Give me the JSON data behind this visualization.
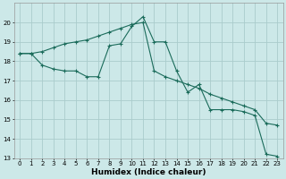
{
  "xlabel": "Humidex (Indice chaleur)",
  "background_color": "#cce8e8",
  "grid_color": "#aacccc",
  "line_color": "#1a6b5a",
  "line1_y": [
    18.4,
    18.4,
    17.8,
    17.6,
    17.5,
    17.5,
    17.2,
    17.2,
    18.8,
    18.9,
    19.8,
    20.3,
    19.0,
    19.0,
    17.5,
    16.4,
    16.8,
    15.5,
    15.5,
    15.5,
    15.4,
    15.2,
    13.2,
    13.1
  ],
  "line2_y": [
    18.4,
    18.4,
    18.5,
    18.7,
    18.9,
    19.0,
    19.1,
    19.3,
    19.5,
    19.7,
    19.9,
    20.0,
    17.5,
    17.2,
    17.0,
    16.8,
    16.6,
    16.3,
    16.1,
    15.9,
    15.7,
    15.5,
    14.8,
    14.7
  ],
  "ylim": [
    13,
    21
  ],
  "xlim": [
    -0.5,
    23.5
  ],
  "yticks": [
    13,
    14,
    15,
    16,
    17,
    18,
    19,
    20
  ],
  "xticks": [
    0,
    1,
    2,
    3,
    4,
    5,
    6,
    7,
    8,
    9,
    10,
    11,
    12,
    13,
    14,
    15,
    16,
    17,
    18,
    19,
    20,
    21,
    22,
    23
  ],
  "tick_fontsize": 5,
  "label_fontsize": 6.5,
  "linewidth": 0.8,
  "markersize": 2.5,
  "markeredgewidth": 0.8
}
